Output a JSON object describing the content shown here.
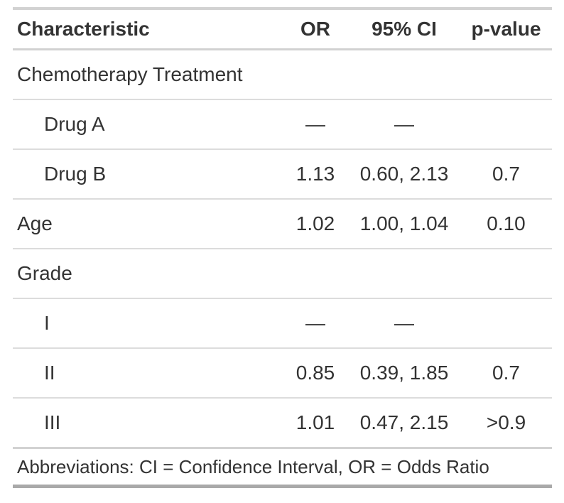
{
  "table": {
    "columns": {
      "characteristic": "Characteristic",
      "or": "OR",
      "ci": "95% CI",
      "p": "p-value"
    },
    "rows": [
      {
        "label": "Chemotherapy Treatment",
        "or": "",
        "ci": "",
        "p": ""
      },
      {
        "label": "Drug A",
        "or": "—",
        "ci": "—",
        "p": ""
      },
      {
        "label": "Drug B",
        "or": "1.13",
        "ci": "0.60, 2.13",
        "p": "0.7"
      },
      {
        "label": "Age",
        "or": "1.02",
        "ci": "1.00, 1.04",
        "p": "0.10"
      },
      {
        "label": "Grade",
        "or": "",
        "ci": "",
        "p": ""
      },
      {
        "label": "I",
        "or": "—",
        "ci": "—",
        "p": ""
      },
      {
        "label": "II",
        "or": "0.85",
        "ci": "0.39, 1.85",
        "p": "0.7"
      },
      {
        "label": "III",
        "or": "1.01",
        "ci": "0.47, 2.15",
        "p": ">0.9"
      }
    ],
    "footnote": "Abbreviations: CI = Confidence Interval, OR = Odds Ratio"
  },
  "colors": {
    "text": "#333333",
    "border_light": "#dcdcdc",
    "border_medium": "#d2d2d2",
    "border_bottom": "#a9a9a9",
    "background": "#ffffff"
  },
  "chart_data": {
    "type": "table",
    "title": "",
    "columns": [
      "Characteristic",
      "OR",
      "95% CI",
      "p-value"
    ],
    "rows": [
      [
        "Chemotherapy Treatment",
        "",
        "",
        ""
      ],
      [
        "Drug A",
        "—",
        "—",
        ""
      ],
      [
        "Drug B",
        "1.13",
        "0.60, 2.13",
        "0.7"
      ],
      [
        "Age",
        "1.02",
        "1.00, 1.04",
        "0.10"
      ],
      [
        "Grade",
        "",
        "",
        ""
      ],
      [
        "I",
        "—",
        "—",
        ""
      ],
      [
        "II",
        "0.85",
        "0.39, 1.85",
        "0.7"
      ],
      [
        "III",
        "1.01",
        "0.47, 2.15",
        ">0.9"
      ]
    ],
    "footnote": "Abbreviations: CI = Confidence Interval, OR = Odds Ratio",
    "layout": {
      "value_columns_align": "center",
      "label_column_align": "left",
      "indented_rows": [
        1,
        2,
        5,
        6,
        7
      ]
    }
  }
}
